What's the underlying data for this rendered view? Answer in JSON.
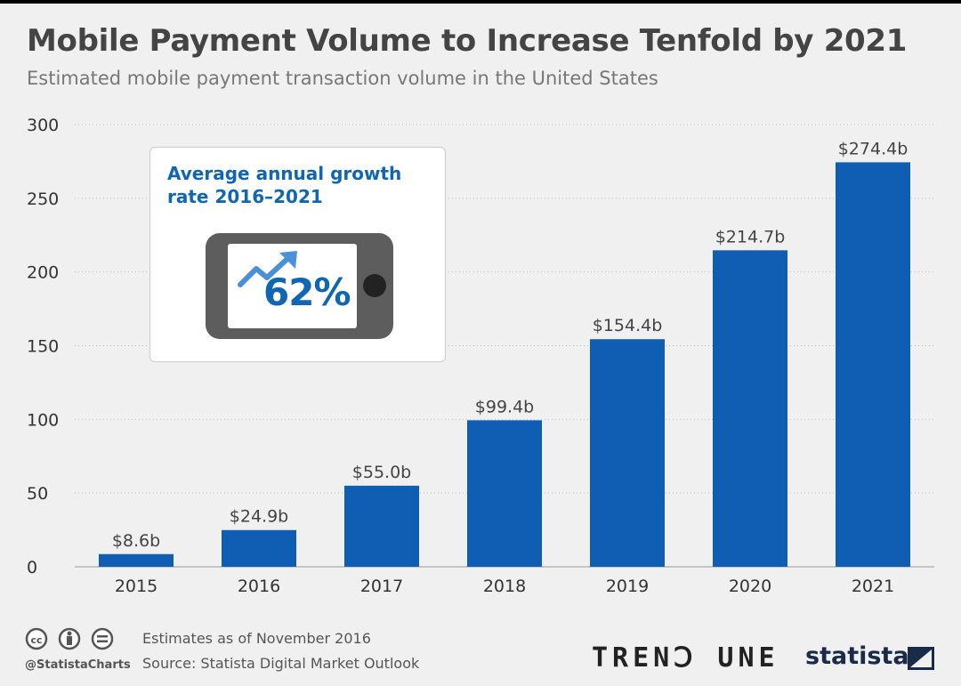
{
  "title": "Mobile Payment Volume to Increase Tenfold by 2021",
  "subtitle": "Estimated mobile payment transaction volume in the United States",
  "callout": {
    "label": "Average annual growth rate 2016–2021",
    "value": "62%",
    "icon": "phone-growth-arrow-icon"
  },
  "colors": {
    "bar": "#0f5eb3",
    "accent": "#0f66b4",
    "background": "#f0f0f0"
  },
  "chart_data": {
    "type": "bar",
    "categories": [
      "2015",
      "2016",
      "2017",
      "2018",
      "2019",
      "2020",
      "2021"
    ],
    "values": [
      8.6,
      24.9,
      55.0,
      99.4,
      154.4,
      214.7,
      274.4
    ],
    "data_labels": [
      "$8.6b",
      "$24.9b",
      "$55.0b",
      "$99.4b",
      "$154.4b",
      "$214.7b",
      "$274.4b"
    ],
    "ylim": [
      0,
      300
    ],
    "yticks": [
      0,
      50,
      100,
      150,
      200,
      250,
      300
    ],
    "grid": true,
    "legend": "none"
  },
  "footer": {
    "handle": "@StatistaCharts",
    "note": "Estimates as of November 2016",
    "source": "Source: Statista Digital Market Outlook",
    "partner_logo": "TRENↃ UNE",
    "brand_logo": "statista"
  }
}
